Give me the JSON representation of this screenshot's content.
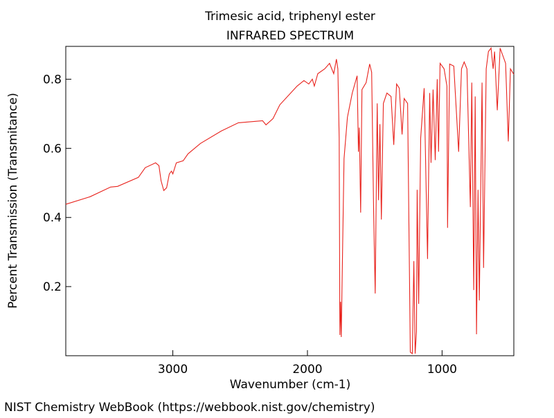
{
  "chart_data": {
    "type": "line",
    "title": "Trimesic acid, triphenyl ester",
    "subtitle": "INFRARED SPECTRUM",
    "x_label": "Wavenumber (cm-1)",
    "y_label": "Percent Transmission (Transmitance)",
    "source": "NIST Chemistry WebBook (https://webbook.nist.gov/chemistry)",
    "color": "#e8221c",
    "xlim": [
      3795,
      467
    ],
    "ylim": [
      0,
      0.895
    ],
    "xticks": [
      3000,
      2000,
      1000
    ],
    "yticks": [
      0.2,
      0.4,
      0.6,
      0.8
    ],
    "x": [
      3795,
      3615,
      3462,
      3410,
      3256,
      3205,
      3128,
      3103,
      3087,
      3067,
      3046,
      3026,
      3010,
      3000,
      2974,
      2923,
      2887,
      2795,
      2641,
      2513,
      2333,
      2308,
      2256,
      2205,
      2077,
      2026,
      1990,
      1964,
      1949,
      1923,
      1872,
      1836,
      1805,
      1785,
      1774,
      1764,
      1759,
      1754,
      1749,
      1738,
      1728,
      1703,
      1667,
      1631,
      1621,
      1615,
      1605,
      1595,
      1564,
      1538,
      1523,
      1508,
      1497,
      1482,
      1472,
      1462,
      1451,
      1436,
      1410,
      1379,
      1359,
      1338,
      1318,
      1297,
      1282,
      1256,
      1236,
      1221,
      1210,
      1200,
      1190,
      1185,
      1174,
      1159,
      1133,
      1108,
      1092,
      1082,
      1067,
      1051,
      1036,
      1026,
      1015,
      985,
      964,
      959,
      944,
      913,
      877,
      856,
      836,
      815,
      790,
      779,
      765,
      754,
      744,
      733,
      723,
      703,
      692,
      672,
      656,
      636,
      621,
      610,
      590,
      569,
      528,
      508,
      492,
      467
    ],
    "values": [
      0.438,
      0.46,
      0.488,
      0.49,
      0.516,
      0.544,
      0.558,
      0.55,
      0.506,
      0.478,
      0.486,
      0.526,
      0.534,
      0.526,
      0.558,
      0.564,
      0.584,
      0.614,
      0.65,
      0.674,
      0.68,
      0.668,
      0.686,
      0.726,
      0.78,
      0.796,
      0.786,
      0.8,
      0.78,
      0.816,
      0.83,
      0.846,
      0.816,
      0.858,
      0.83,
      0.63,
      0.06,
      0.156,
      0.054,
      0.33,
      0.57,
      0.69,
      0.76,
      0.81,
      0.59,
      0.66,
      0.414,
      0.77,
      0.79,
      0.844,
      0.82,
      0.41,
      0.18,
      0.73,
      0.45,
      0.67,
      0.394,
      0.73,
      0.76,
      0.75,
      0.61,
      0.786,
      0.774,
      0.64,
      0.744,
      0.73,
      0.01,
      0.006,
      0.274,
      0.006,
      0.07,
      0.48,
      0.15,
      0.63,
      0.774,
      0.28,
      0.76,
      0.558,
      0.77,
      0.566,
      0.8,
      0.59,
      0.846,
      0.83,
      0.78,
      0.37,
      0.844,
      0.838,
      0.59,
      0.83,
      0.85,
      0.83,
      0.43,
      0.79,
      0.19,
      0.75,
      0.062,
      0.48,
      0.16,
      0.79,
      0.254,
      0.83,
      0.88,
      0.89,
      0.83,
      0.88,
      0.71,
      0.89,
      0.846,
      0.62,
      0.83,
      0.814
    ]
  }
}
